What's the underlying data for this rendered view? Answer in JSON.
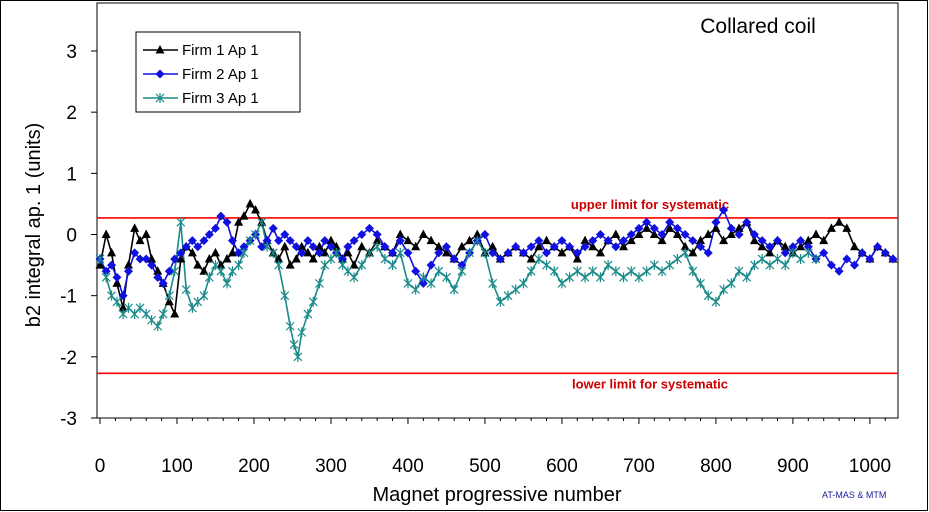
{
  "chart_data": {
    "type": "line",
    "title": "Collared coil",
    "xlabel": "Magnet progressive number",
    "ylabel": "b2 integral ap. 1 (units)",
    "xlim": [
      0,
      1030
    ],
    "ylim": [
      -3,
      3.5
    ],
    "xticks": [
      "0",
      "100",
      "200",
      "300",
      "400",
      "500",
      "600",
      "700",
      "800",
      "900",
      "1000"
    ],
    "yticks": [
      "3",
      "2",
      "1",
      "0",
      "-1",
      "-2",
      "-3"
    ],
    "grid": false,
    "legend_position": "top-left",
    "limits": [
      {
        "label": "upper limit for systematic",
        "value": 0.27,
        "color": "#ff0000"
      },
      {
        "label": "lower limit for systematic",
        "value": -2.27,
        "color": "#ff0000"
      }
    ],
    "credit": "AT-MAS & MTM",
    "colors": {
      "credit": "#1a1a99",
      "limit_label": "#cc0000"
    },
    "series": [
      {
        "name": "Firm 1 Ap 1",
        "color": "#000000",
        "marker": "triangle",
        "x": [
          0,
          8,
          15,
          22,
          30,
          37,
          45,
          52,
          60,
          67,
          75,
          82,
          90,
          97,
          105,
          112,
          120,
          127,
          135,
          142,
          150,
          157,
          165,
          172,
          180,
          187,
          195,
          202,
          210,
          217,
          225,
          232,
          240,
          247,
          255,
          262,
          270,
          277,
          285,
          292,
          300,
          307,
          315,
          322,
          330,
          340,
          350,
          360,
          370,
          380,
          390,
          400,
          410,
          420,
          430,
          440,
          450,
          460,
          470,
          480,
          490,
          500,
          510,
          520,
          530,
          540,
          550,
          560,
          570,
          580,
          590,
          600,
          610,
          620,
          630,
          640,
          650,
          660,
          670,
          680,
          690,
          700,
          710,
          720,
          730,
          740,
          750,
          760,
          770,
          780,
          790,
          800,
          810,
          820,
          830,
          840,
          850,
          860,
          870,
          880,
          890,
          900,
          910,
          920,
          930,
          940,
          950,
          960,
          970,
          980,
          990,
          1000,
          1010,
          1020,
          1030
        ],
        "y": [
          -0.5,
          0.0,
          -0.3,
          -0.8,
          -1.2,
          -0.5,
          0.1,
          -0.1,
          0.0,
          -0.4,
          -0.6,
          -0.8,
          -1.1,
          -1.3,
          -0.4,
          -0.2,
          -0.3,
          -0.5,
          -0.6,
          -0.4,
          -0.3,
          -0.5,
          -0.4,
          -0.3,
          0.2,
          0.3,
          0.5,
          0.4,
          0.2,
          -0.1,
          -0.3,
          -0.4,
          -0.2,
          -0.5,
          -0.4,
          -0.2,
          -0.3,
          -0.4,
          -0.2,
          -0.3,
          -0.1,
          -0.2,
          -0.4,
          -0.3,
          -0.5,
          -0.2,
          -0.3,
          -0.1,
          -0.2,
          -0.3,
          0.0,
          -0.1,
          -0.2,
          0.0,
          -0.1,
          -0.2,
          -0.3,
          -0.4,
          -0.2,
          -0.1,
          0.0,
          -0.3,
          -0.2,
          -0.4,
          -0.3,
          -0.2,
          -0.3,
          -0.4,
          -0.2,
          -0.1,
          -0.2,
          -0.3,
          -0.2,
          -0.4,
          -0.1,
          -0.2,
          -0.3,
          -0.1,
          0.0,
          -0.2,
          -0.1,
          0.0,
          0.1,
          0.0,
          -0.1,
          0.1,
          0.0,
          -0.2,
          -0.3,
          -0.1,
          0.0,
          0.1,
          -0.1,
          0.0,
          0.1,
          0.2,
          -0.1,
          -0.2,
          -0.3,
          -0.1,
          -0.2,
          -0.3,
          -0.2,
          -0.1,
          0.0,
          -0.1,
          0.1,
          0.2,
          0.1,
          -0.2,
          -0.3,
          -0.4,
          -0.2,
          -0.3,
          -0.4
        ]
      },
      {
        "name": "Firm 2 Ap 1",
        "color": "#1010e0",
        "marker": "diamond",
        "x": [
          0,
          8,
          15,
          22,
          30,
          37,
          45,
          52,
          60,
          67,
          75,
          82,
          90,
          97,
          105,
          112,
          120,
          127,
          135,
          142,
          150,
          157,
          165,
          172,
          180,
          187,
          195,
          202,
          210,
          217,
          225,
          232,
          240,
          247,
          255,
          262,
          270,
          277,
          285,
          292,
          300,
          307,
          315,
          322,
          330,
          340,
          350,
          360,
          370,
          380,
          390,
          400,
          410,
          420,
          430,
          440,
          450,
          460,
          470,
          480,
          490,
          500,
          510,
          520,
          530,
          540,
          550,
          560,
          570,
          580,
          590,
          600,
          610,
          620,
          630,
          640,
          650,
          660,
          670,
          680,
          690,
          700,
          710,
          720,
          730,
          740,
          750,
          760,
          770,
          780,
          790,
          800,
          810,
          820,
          830,
          840,
          850,
          860,
          870,
          880,
          890,
          900,
          910,
          920,
          930,
          940,
          950,
          960,
          970,
          980,
          990,
          1000,
          1010,
          1020,
          1030
        ],
        "y": [
          -0.4,
          -0.6,
          -0.5,
          -0.7,
          -1.0,
          -0.6,
          -0.3,
          -0.4,
          -0.4,
          -0.5,
          -0.7,
          -0.8,
          -0.6,
          -0.4,
          -0.3,
          -0.2,
          -0.1,
          -0.2,
          -0.1,
          0.0,
          0.1,
          0.3,
          0.2,
          -0.1,
          -0.3,
          -0.2,
          -0.1,
          0.0,
          -0.2,
          -0.1,
          0.1,
          -0.1,
          0.0,
          -0.1,
          -0.2,
          -0.3,
          -0.1,
          -0.2,
          -0.3,
          -0.1,
          -0.2,
          -0.3,
          -0.4,
          -0.2,
          -0.1,
          0.0,
          0.1,
          0.0,
          -0.2,
          -0.3,
          -0.1,
          -0.3,
          -0.6,
          -0.8,
          -0.5,
          -0.3,
          -0.2,
          -0.4,
          -0.5,
          -0.3,
          -0.1,
          0.0,
          -0.3,
          -0.4,
          -0.3,
          -0.2,
          -0.3,
          -0.2,
          -0.1,
          -0.3,
          -0.2,
          -0.1,
          -0.2,
          -0.3,
          -0.2,
          -0.1,
          0.0,
          -0.1,
          -0.2,
          -0.1,
          0.0,
          0.1,
          0.2,
          0.1,
          0.0,
          0.2,
          0.1,
          0.0,
          -0.1,
          -0.2,
          -0.3,
          0.2,
          0.4,
          0.1,
          0.0,
          0.2,
          0.0,
          -0.1,
          -0.2,
          -0.1,
          -0.3,
          -0.2,
          -0.1,
          -0.2,
          -0.4,
          -0.3,
          -0.5,
          -0.6,
          -0.4,
          -0.5,
          -0.3,
          -0.4,
          -0.2,
          -0.3,
          -0.4
        ]
      },
      {
        "name": "Firm 3 Ap 1",
        "color": "#1a8a8a",
        "marker": "star",
        "x": [
          0,
          8,
          15,
          22,
          30,
          37,
          45,
          52,
          60,
          67,
          75,
          82,
          90,
          97,
          105,
          112,
          120,
          127,
          135,
          142,
          150,
          157,
          165,
          172,
          180,
          187,
          195,
          202,
          210,
          217,
          225,
          232,
          240,
          247,
          252,
          257,
          262,
          270,
          277,
          285,
          292,
          300,
          307,
          315,
          322,
          330,
          340,
          350,
          360,
          370,
          380,
          390,
          400,
          410,
          420,
          430,
          440,
          450,
          460,
          470,
          480,
          490,
          500,
          510,
          520,
          530,
          540,
          550,
          560,
          570,
          580,
          590,
          600,
          610,
          620,
          630,
          640,
          650,
          660,
          670,
          680,
          690,
          700,
          710,
          720,
          730,
          740,
          750,
          760,
          770,
          780,
          790,
          800,
          810,
          820,
          830,
          840,
          850,
          860,
          870,
          880,
          890,
          900,
          910,
          920,
          930
        ],
        "y": [
          -0.4,
          -0.7,
          -1.0,
          -1.1,
          -1.3,
          -1.2,
          -1.3,
          -1.2,
          -1.3,
          -1.4,
          -1.5,
          -1.3,
          -1.0,
          -0.6,
          0.2,
          -0.9,
          -1.2,
          -1.1,
          -1.0,
          -0.7,
          -0.5,
          -0.6,
          -0.8,
          -0.6,
          -0.5,
          -0.3,
          -0.1,
          0.0,
          0.2,
          -0.2,
          -0.3,
          -0.5,
          -1.0,
          -1.5,
          -1.8,
          -2.0,
          -1.6,
          -1.3,
          -1.1,
          -0.8,
          -0.5,
          -0.4,
          -0.3,
          -0.5,
          -0.6,
          -0.7,
          -0.5,
          -0.3,
          -0.2,
          -0.4,
          -0.5,
          -0.3,
          -0.8,
          -0.9,
          -0.7,
          -0.8,
          -0.6,
          -0.7,
          -0.9,
          -0.6,
          -0.3,
          -0.1,
          -0.3,
          -0.8,
          -1.1,
          -1.0,
          -0.9,
          -0.8,
          -0.6,
          -0.4,
          -0.5,
          -0.6,
          -0.8,
          -0.7,
          -0.6,
          -0.7,
          -0.6,
          -0.7,
          -0.5,
          -0.6,
          -0.7,
          -0.6,
          -0.7,
          -0.6,
          -0.5,
          -0.6,
          -0.5,
          -0.4,
          -0.3,
          -0.6,
          -0.8,
          -1.0,
          -1.1,
          -0.9,
          -0.8,
          -0.6,
          -0.7,
          -0.5,
          -0.4,
          -0.5,
          -0.4,
          -0.5,
          -0.3,
          -0.4,
          -0.3,
          -0.4
        ]
      }
    ]
  }
}
